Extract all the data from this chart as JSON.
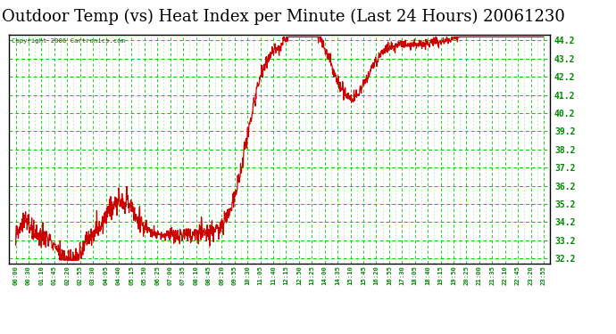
{
  "title": "Outdoor Temp (vs) Heat Index per Minute (Last 24 Hours) 20061230",
  "copyright": "Copyright 2006 Cartronics.com",
  "plot_bg_color": "#ffffff",
  "line_color": "#cc0000",
  "grid_color_major": "#00cc00",
  "grid_color_minor": "#88dd88",
  "yticks": [
    32.2,
    33.2,
    34.2,
    35.2,
    36.2,
    37.2,
    38.2,
    39.2,
    40.2,
    41.2,
    42.2,
    43.2,
    44.2
  ],
  "ylim": [
    31.9,
    44.5
  ],
  "xtick_labels": [
    "00:00",
    "00:30",
    "01:10",
    "01:45",
    "02:20",
    "02:55",
    "03:30",
    "04:05",
    "04:40",
    "05:15",
    "05:50",
    "06:25",
    "07:00",
    "07:35",
    "08:10",
    "08:45",
    "09:20",
    "09:55",
    "10:30",
    "11:05",
    "11:40",
    "12:15",
    "12:50",
    "13:25",
    "14:00",
    "14:35",
    "15:10",
    "15:45",
    "16:20",
    "16:55",
    "17:30",
    "18:05",
    "18:40",
    "19:15",
    "19:50",
    "20:25",
    "21:00",
    "21:35",
    "22:10",
    "22:45",
    "23:20",
    "23:55"
  ],
  "title_fontsize": 13,
  "axis_label_color": "#008800",
  "tick_label_color": "#008800",
  "title_color": "#000000",
  "fig_bg_color": "#ffffff",
  "border_color": "#000000"
}
